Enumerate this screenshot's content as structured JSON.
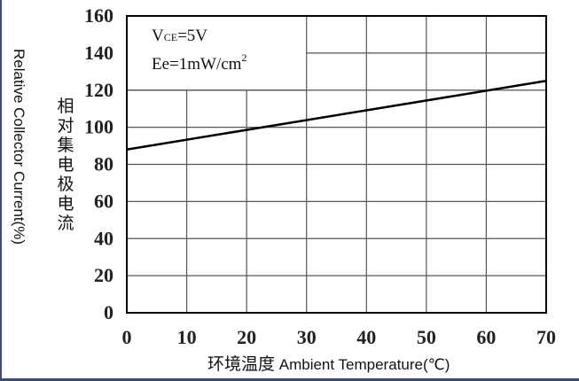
{
  "chart_data": {
    "type": "line",
    "x": [
      0,
      70
    ],
    "series": [
      {
        "values": [
          88,
          125
        ]
      }
    ],
    "xticks": [
      "0",
      "10",
      "20",
      "30",
      "40",
      "50",
      "60",
      "70"
    ],
    "xtick_values": [
      0,
      10,
      20,
      30,
      40,
      50,
      60,
      70
    ],
    "yticks": [
      "0",
      "20",
      "40",
      "60",
      "80",
      "100",
      "120",
      "140",
      "160"
    ],
    "ytick_values": [
      0,
      20,
      40,
      60,
      80,
      100,
      120,
      140,
      160
    ],
    "xlim": [
      0,
      70
    ],
    "ylim": [
      0,
      160
    ],
    "grid": true,
    "xlabel_zh": "环境温度",
    "xlabel_en": "Ambient Temperature(℃)",
    "ylabel_zh": [
      "相",
      "对",
      "集",
      "电",
      "极",
      "电",
      "流"
    ],
    "ylabel_en": "Relative Collector Current(%)",
    "annotation": {
      "vce_prefix": "V",
      "vce_sub": "CE",
      "vce_value": "=5V",
      "ee_text": "Ee=1mW/cm",
      "ee_sup": "2"
    },
    "line_color": "#000000",
    "grid_color": "#555555"
  }
}
